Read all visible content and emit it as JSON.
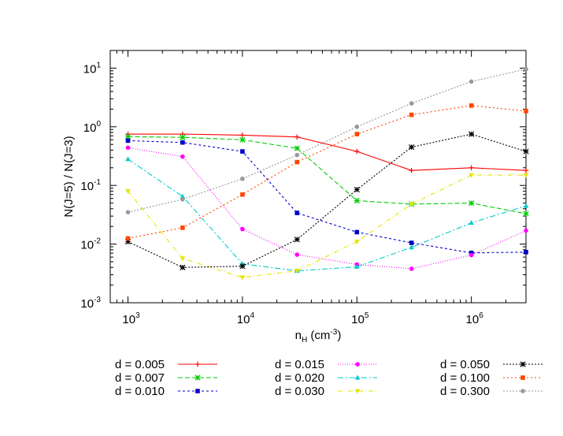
{
  "chart_data": {
    "type": "line",
    "x_scale": "log",
    "y_scale": "log",
    "xlim": [
      700,
      3000000
    ],
    "ylim": [
      0.001,
      20
    ],
    "grid": false,
    "legend_position": "bottom",
    "xlabel": {
      "base": "n",
      "sub": "H",
      "unit_pre": " (cm",
      "unit_sup": "-3",
      "unit_post": ")"
    },
    "ylabel": "N(J=5) / N(J=3)",
    "x_ticks": [
      {
        "value": 1000,
        "base": "10",
        "exp": "3"
      },
      {
        "value": 10000,
        "base": "10",
        "exp": "4"
      },
      {
        "value": 100000,
        "base": "10",
        "exp": "5"
      },
      {
        "value": 1000000,
        "base": "10",
        "exp": "6"
      }
    ],
    "y_ticks": [
      {
        "value": 0.001,
        "base": "10",
        "exp": "-3"
      },
      {
        "value": 0.01,
        "base": "10",
        "exp": "-2"
      },
      {
        "value": 0.1,
        "base": "10",
        "exp": "-1"
      },
      {
        "value": 1,
        "base": "10",
        "exp": "0"
      },
      {
        "value": 10,
        "base": "10",
        "exp": "1"
      }
    ],
    "x": [
      1000,
      3000,
      10000,
      30000,
      100000,
      300000,
      1000000,
      3000000
    ],
    "series": [
      {
        "name": "d = 0.005",
        "color": "#ff0000",
        "dash": "",
        "marker": "plus",
        "values": [
          0.75,
          0.75,
          0.72,
          0.67,
          0.38,
          0.18,
          0.2,
          0.18
        ]
      },
      {
        "name": "d = 0.007",
        "color": "#00cc00",
        "dash": "6,3",
        "marker": "star",
        "values": [
          0.68,
          0.66,
          0.6,
          0.43,
          0.055,
          0.048,
          0.05,
          0.033
        ]
      },
      {
        "name": "d = 0.010",
        "color": "#0000cc",
        "dash": "3,3",
        "marker": "square",
        "values": [
          0.58,
          0.54,
          0.38,
          0.034,
          0.016,
          0.0105,
          0.0071,
          0.0073
        ]
      },
      {
        "name": "d = 0.015",
        "color": "#ff00ff",
        "dash": "1,2",
        "marker": "circle",
        "values": [
          0.44,
          0.31,
          0.018,
          0.0066,
          0.0045,
          0.0038,
          0.0065,
          0.017
        ]
      },
      {
        "name": "d = 0.020",
        "color": "#00cccc",
        "dash": "7,3,2,3",
        "marker": "triangle",
        "values": [
          0.28,
          0.065,
          0.0046,
          0.0035,
          0.0041,
          0.0088,
          0.023,
          0.045
        ]
      },
      {
        "name": "d = 0.030",
        "color": "#e6e600",
        "dash": "6,3,1,3",
        "marker": "triangle-down",
        "values": [
          0.08,
          0.0057,
          0.0027,
          0.0035,
          0.011,
          0.048,
          0.15,
          0.15
        ]
      },
      {
        "name": "d = 0.050",
        "color": "#000000",
        "dash": "2,2",
        "marker": "star",
        "values": [
          0.011,
          0.004,
          0.0042,
          0.012,
          0.085,
          0.45,
          0.75,
          0.38
        ]
      },
      {
        "name": "d = 0.100",
        "color": "#ff4400",
        "dash": "2,3",
        "marker": "square",
        "values": [
          0.0125,
          0.019,
          0.07,
          0.25,
          0.75,
          1.6,
          2.3,
          1.85
        ]
      },
      {
        "name": "d = 0.300",
        "color": "#999999",
        "dash": "2,2",
        "marker": "circle",
        "values": [
          0.035,
          0.058,
          0.13,
          0.33,
          1.0,
          2.5,
          5.9,
          9.6
        ]
      }
    ]
  }
}
